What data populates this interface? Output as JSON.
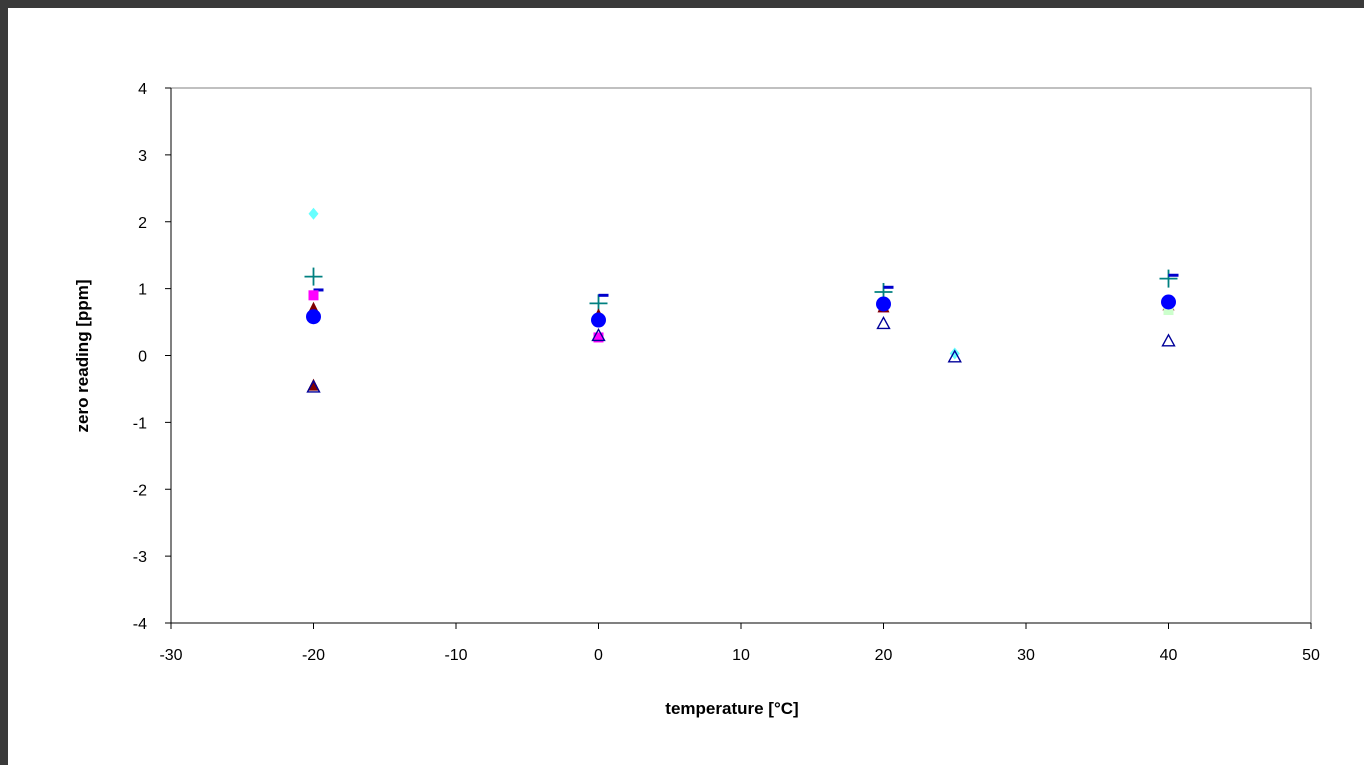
{
  "chart_data": {
    "type": "scatter",
    "title": "",
    "xlabel": "temperature [°C]",
    "ylabel": "zero reading [ppm]",
    "xlim": [
      -30,
      50
    ],
    "ylim": [
      -4,
      4
    ],
    "x_ticks": [
      "-30",
      "-20",
      "-10",
      "0",
      "10",
      "20",
      "30",
      "40",
      "50"
    ],
    "y_ticks": [
      "4",
      "3",
      "2",
      "1",
      "0",
      "-1",
      "-2",
      "-3",
      "-4"
    ],
    "grid": false,
    "legend": "none",
    "series": [
      {
        "marker": "diamond",
        "color": "#66ffff",
        "points": [
          [
            -20,
            2.12
          ],
          [
            0,
            0.55
          ],
          [
            20,
            0.8
          ],
          [
            25,
            0.03
          ],
          [
            40,
            0.75
          ]
        ]
      },
      {
        "marker": "plus",
        "color": "#008080",
        "points": [
          [
            -20,
            1.18
          ],
          [
            0,
            0.78
          ],
          [
            20,
            0.95
          ],
          [
            40,
            1.15
          ]
        ]
      },
      {
        "marker": "dash",
        "color": "#0000cc",
        "points": [
          [
            -20,
            0.98
          ],
          [
            0,
            0.9
          ],
          [
            20,
            1.02
          ],
          [
            40,
            1.2
          ]
        ]
      },
      {
        "marker": "square",
        "color": "#ff00ff",
        "points": [
          [
            -20,
            0.9
          ],
          [
            0,
            0.27
          ],
          [
            20,
            0.72
          ],
          [
            40,
            0.75
          ]
        ]
      },
      {
        "marker": "triangle",
        "color": "#800000",
        "points": [
          [
            -20,
            0.7
          ],
          [
            -20,
            -0.45
          ],
          [
            0,
            0.6
          ],
          [
            20,
            0.72
          ],
          [
            40,
            0.75
          ]
        ]
      },
      {
        "marker": "square",
        "color": "#ccffcc",
        "points": [
          [
            0,
            0.55
          ],
          [
            20,
            0.78
          ],
          [
            40,
            0.68
          ]
        ]
      },
      {
        "marker": "circle",
        "color": "#0000ff",
        "points": [
          [
            -20,
            0.58
          ],
          [
            0,
            0.53
          ],
          [
            20,
            0.77
          ],
          [
            40,
            0.8
          ]
        ]
      },
      {
        "marker": "open-triangle",
        "color": "#000099",
        "points": [
          [
            -20,
            -0.47
          ],
          [
            0,
            0.3
          ],
          [
            20,
            0.48
          ],
          [
            25,
            -0.02
          ],
          [
            40,
            0.22
          ]
        ]
      }
    ]
  }
}
